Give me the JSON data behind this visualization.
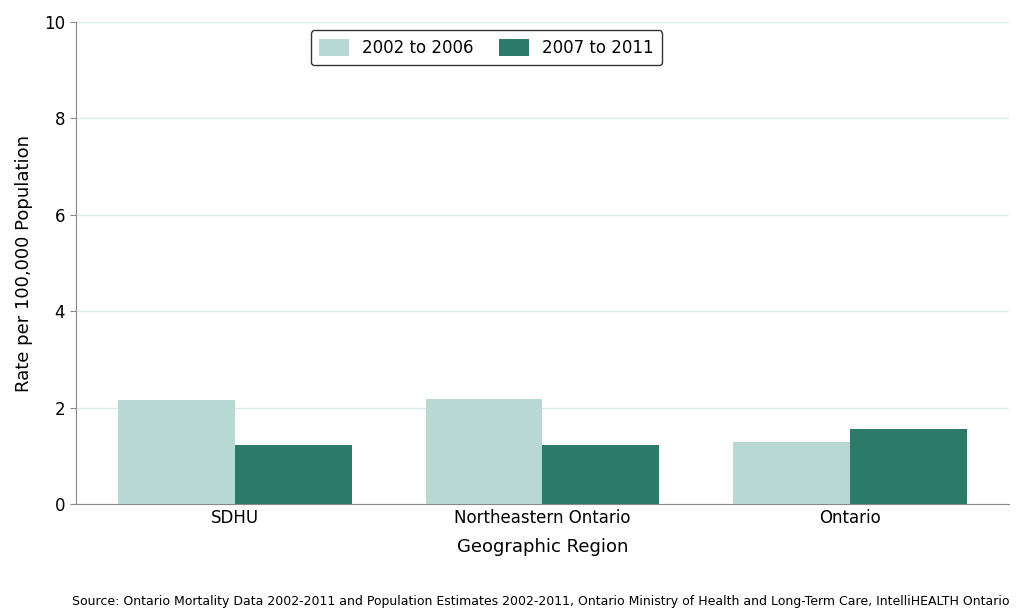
{
  "categories": [
    "SDHU",
    "Northeastern Ontario",
    "Ontario"
  ],
  "values_2002_2006": [
    2.15,
    2.18,
    1.28
  ],
  "values_2007_2011": [
    1.22,
    1.22,
    1.55
  ],
  "color_2002_2006": "#b8d9d3",
  "color_2007_2011": "#2b7a6a",
  "legend_labels": [
    "2002 to 2006",
    "2007 to 2011"
  ],
  "ylabel": "Rate per 100,000 Population",
  "xlabel": "Geographic Region",
  "ylim": [
    0,
    10
  ],
  "yticks": [
    0,
    2,
    4,
    6,
    8,
    10
  ],
  "bar_width": 0.38,
  "source_text": "Source: Ontario Mortality Data 2002-2011 and Population Estimates 2002-2011, Ontario Ministry of Health and Long-Term Care, IntelliHEALTH Ontario",
  "background_color": "#ffffff",
  "grid_color": "#d8eee8",
  "axis_label_fontsize": 13,
  "tick_fontsize": 12,
  "legend_fontsize": 12,
  "source_fontsize": 9
}
